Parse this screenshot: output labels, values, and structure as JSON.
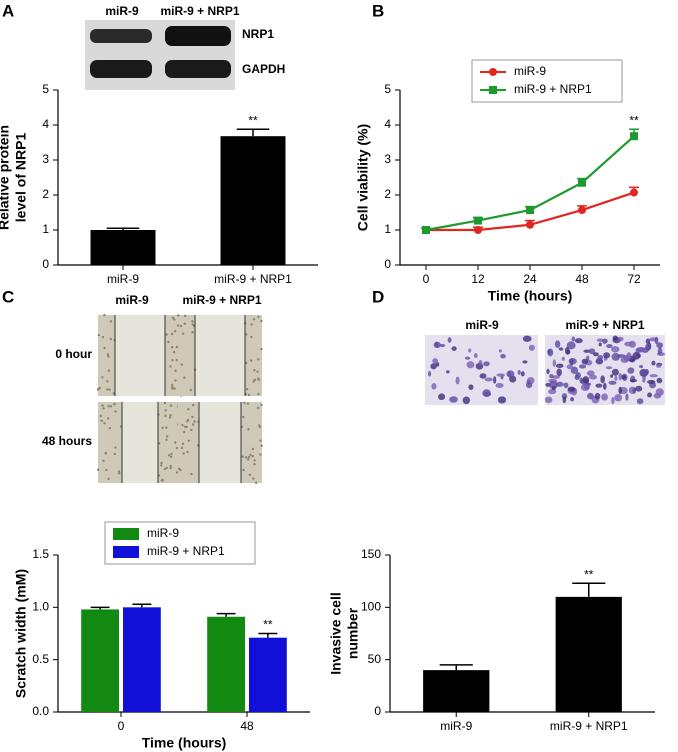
{
  "panel_labels": [
    "A",
    "B",
    "C",
    "D"
  ],
  "blot": {
    "lanes": [
      "miR-9",
      "miR-9 + NRP1"
    ],
    "bands": [
      "NRP1",
      "GAPDH"
    ]
  },
  "scratch": {
    "columns": [
      "miR-9",
      "miR-9 + NRP1"
    ],
    "rows": [
      "0 hour",
      "48 hours"
    ]
  },
  "invasion": {
    "columns": [
      "miR-9",
      "miR-9 + NRP1"
    ]
  },
  "chart_data": [
    {
      "type": "bar",
      "ylabel": [
        "Relative protein",
        "level of NRP1"
      ],
      "categories": [
        "miR-9",
        "miR-9 + NRP1"
      ],
      "values": [
        1.0,
        3.68
      ],
      "errors": [
        0.05,
        0.2
      ],
      "significance": [
        null,
        "**"
      ],
      "color": "#000000",
      "ylim": [
        0,
        5
      ],
      "yticks": [
        0,
        1,
        2,
        3,
        4,
        5
      ]
    },
    {
      "type": "line",
      "ylabel": [
        "Cell viability (%)"
      ],
      "xlabel": "Time (hours)",
      "categories": [
        "0",
        "12",
        "24",
        "48",
        "72"
      ],
      "legend": "top",
      "series": [
        {
          "name": "miR-9",
          "color": "#e0261f",
          "marker": "circle",
          "values": [
            1.0,
            1.0,
            1.15,
            1.57,
            2.07
          ],
          "errors": [
            0.05,
            0.08,
            0.12,
            0.12,
            0.15
          ],
          "significance": [
            null,
            null,
            null,
            null,
            null
          ]
        },
        {
          "name": "miR-9 + NRP1",
          "color": "#1e9a2e",
          "marker": "square",
          "values": [
            1.0,
            1.27,
            1.57,
            2.35,
            3.68
          ],
          "errors": [
            0.05,
            0.08,
            0.1,
            0.12,
            0.2
          ],
          "significance": [
            null,
            null,
            null,
            null,
            "**"
          ]
        }
      ],
      "ylim": [
        0,
        5
      ],
      "yticks": [
        0,
        1,
        2,
        3,
        4,
        5
      ]
    },
    {
      "type": "bar",
      "ylabel": [
        "Scratch width (mM)"
      ],
      "xlabel": "Time (hours)",
      "categories": [
        "0",
        "48"
      ],
      "legend": "top",
      "series": [
        {
          "name": "miR-9",
          "color": "#128a12",
          "values": [
            0.98,
            0.91
          ],
          "errors": [
            0.02,
            0.03
          ],
          "significance": [
            null,
            null
          ]
        },
        {
          "name": "miR-9 + NRP1",
          "color": "#1010d8",
          "values": [
            1.0,
            0.71
          ],
          "errors": [
            0.03,
            0.04
          ],
          "significance": [
            null,
            "**"
          ]
        }
      ],
      "ylim": [
        0,
        1.5
      ],
      "yticks": [
        {
          "value": 0,
          "label": "0.0"
        },
        {
          "value": 0.5,
          "label": "0.5"
        },
        {
          "value": 1,
          "label": "1.0"
        },
        {
          "value": 1.5,
          "label": "1.5"
        }
      ]
    },
    {
      "type": "bar",
      "ylabel": [
        "Invasive cell",
        "number"
      ],
      "categories": [
        "miR-9",
        "miR-9 + NRP1"
      ],
      "values": [
        40,
        110
      ],
      "errors": [
        5,
        13
      ],
      "significance": [
        null,
        "**"
      ],
      "color": "#000000",
      "ylim": [
        0,
        150
      ],
      "yticks": [
        0,
        50,
        100,
        150
      ]
    }
  ]
}
